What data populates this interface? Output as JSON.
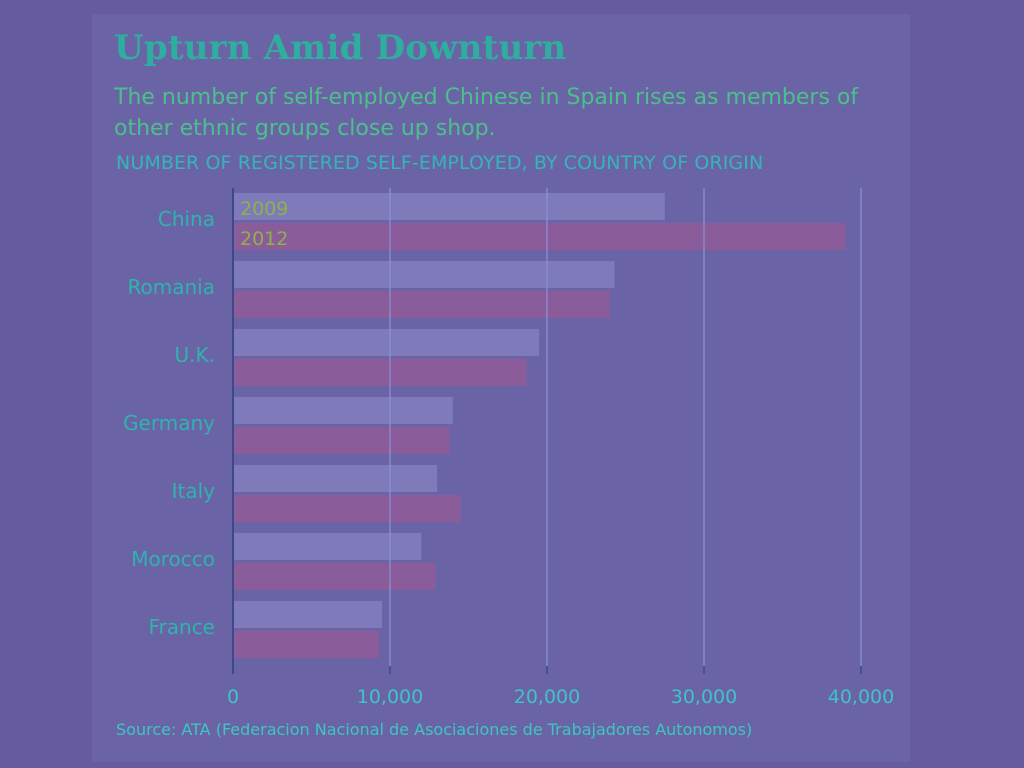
{
  "title": "Upturn Amid Downturn",
  "subtitle": "The number of self-employed Chinese in Spain rises as members of other ethnic groups close up shop.",
  "axis_caption": "NUMBER OF REGISTERED SELF-EMPLOYED, BY COUNTRY OF ORIGIN",
  "source": "Source: ATA (Federacion Nacional de Asociaciones de Trabajadores Autonomos)",
  "colors": {
    "bar_2009": "#7f7bbb",
    "bar_2012": "#8a5d9a",
    "gridline": "#8a8fd8",
    "axis": "#3c4a8a"
  },
  "chart_data": {
    "type": "bar",
    "orientation": "horizontal",
    "categories": [
      "China",
      "Romania",
      "U.K.",
      "Germany",
      "Italy",
      "Morocco",
      "France"
    ],
    "series": [
      {
        "name": "2009",
        "values": [
          27500,
          24300,
          19500,
          14000,
          13000,
          12000,
          9500
        ]
      },
      {
        "name": "2012",
        "values": [
          39000,
          24000,
          18700,
          13800,
          14500,
          12900,
          9300
        ]
      }
    ],
    "xlim": [
      0,
      40000
    ],
    "ticks": [
      0,
      10000,
      20000,
      30000,
      40000
    ],
    "tick_labels": [
      "0",
      "10,000",
      "20,000",
      "30,000",
      "40,000"
    ],
    "grid": true,
    "legend": "inside-first-group"
  }
}
